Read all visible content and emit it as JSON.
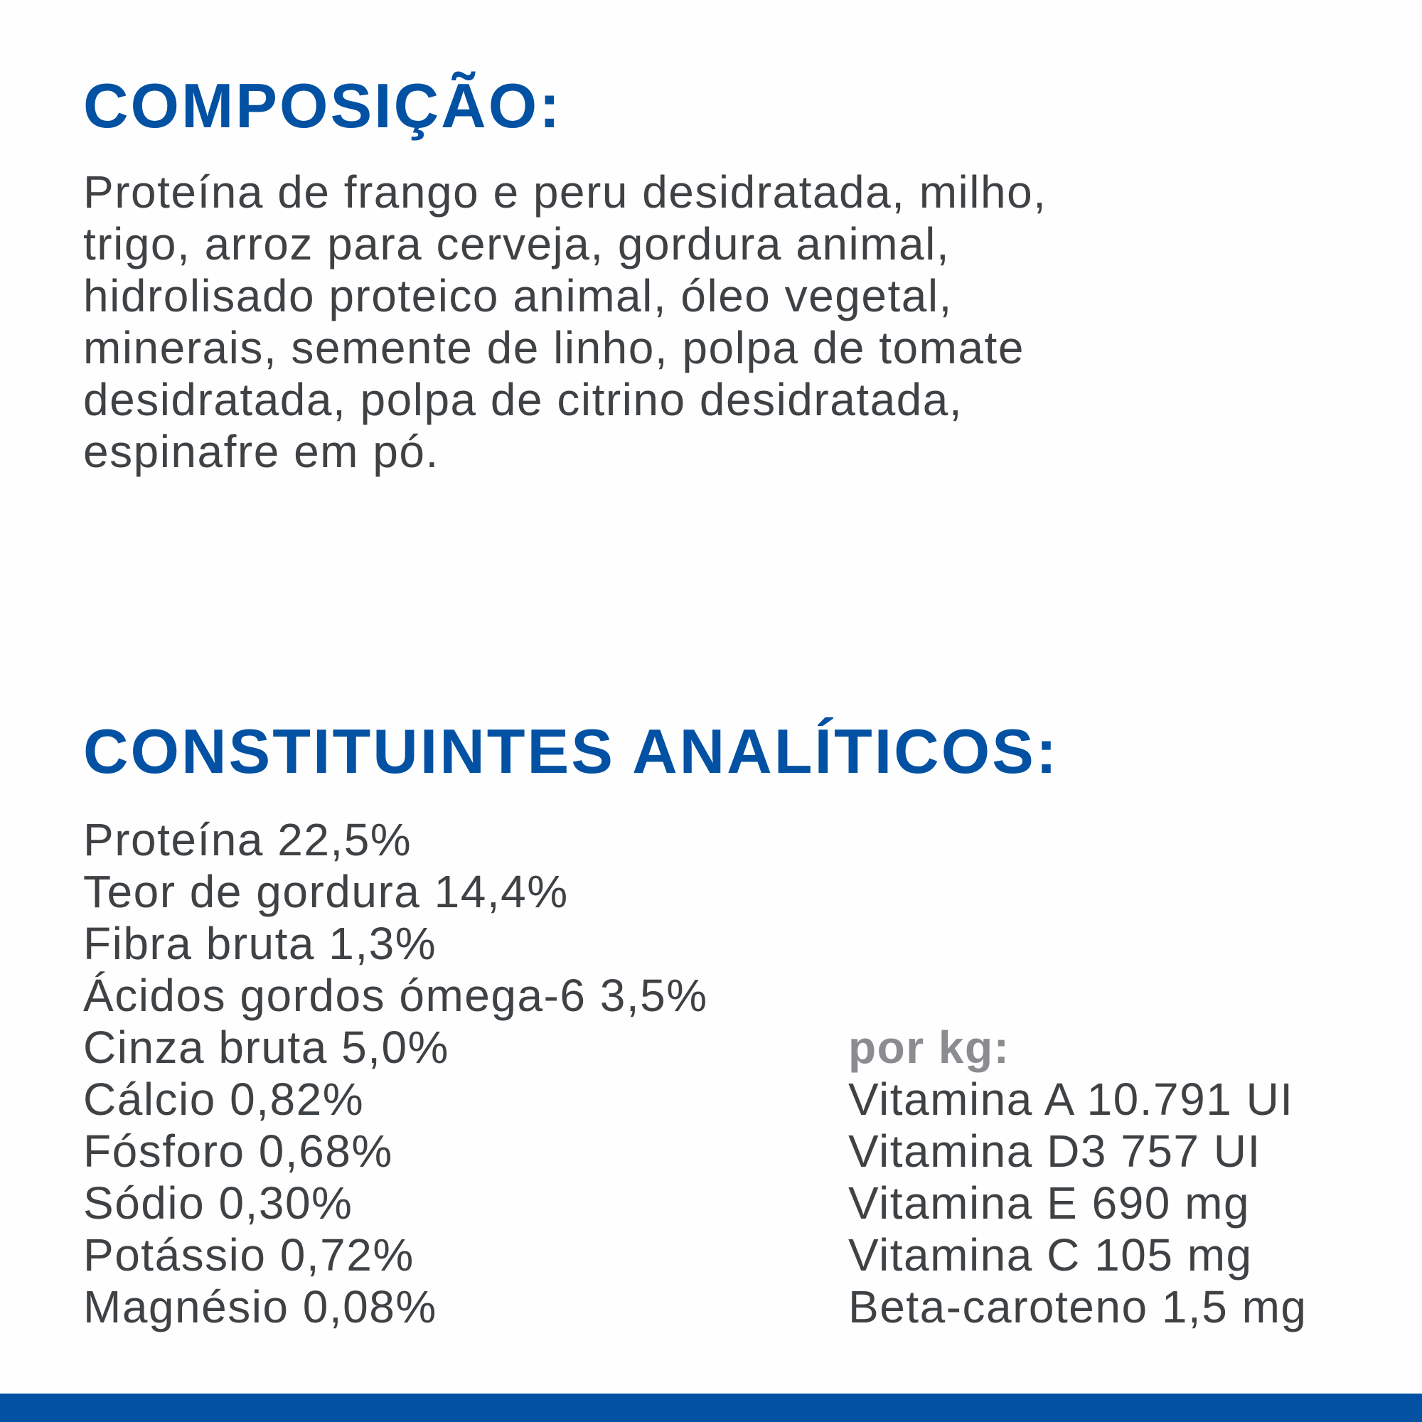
{
  "composition": {
    "title": "COMPOSIÇÃO:",
    "lines": [
      "Proteína de frango e peru desidratada, milho,",
      "trigo, arroz para cerveja, gordura animal,",
      "hidrolisado proteico animal, óleo vegetal,",
      "minerais, semente de linho, polpa de tomate",
      "desidratada, polpa de citrino desidratada,",
      "espinafre em pó."
    ]
  },
  "analytical": {
    "title": "CONSTITUINTES ANALÍTICOS:",
    "items": [
      "Proteína 22,5%",
      "Teor de gordura 14,4%",
      "Fibra bruta 1,3%",
      "Ácidos gordos ómega-6 3,5%",
      "Cinza bruta 5,0%",
      "Cálcio 0,82%",
      "Fósforo 0,68%",
      "Sódio 0,30%",
      "Potássio 0,72%",
      "Magnésio 0,08%"
    ],
    "per_kg": {
      "label": "por kg:",
      "items": [
        "Vitamina A 10.791 UI",
        "Vitamina D3 757 UI",
        "Vitamina E 690 mg",
        "Vitamina C 105 mg",
        "Beta-caroteno 1,5 mg"
      ]
    }
  },
  "colors": {
    "heading": "#0251a3",
    "text": "#3f4245",
    "subheading": "#8a8c8f",
    "footer_bar": "#0251a3"
  }
}
